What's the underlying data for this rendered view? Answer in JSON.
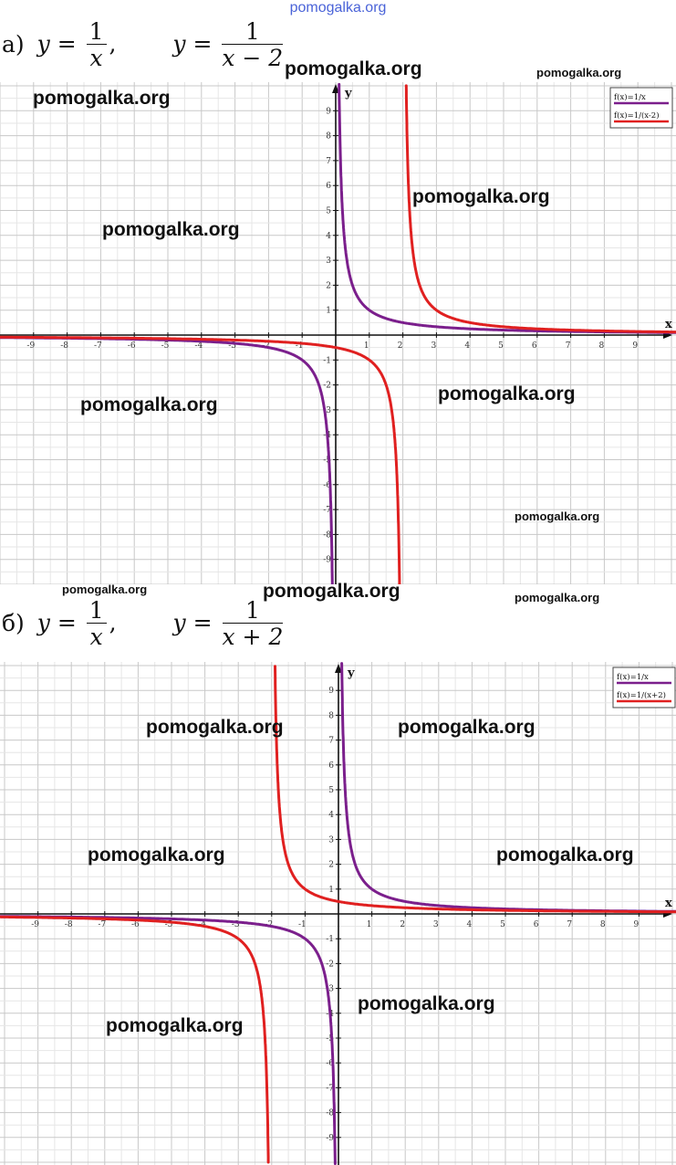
{
  "site_link": "pomogalka.org",
  "watermark": "pomogalka.org",
  "part_a": {
    "label": "а)",
    "eq1": {
      "lhs": "y =",
      "num": "1",
      "den": "x",
      "tail": ","
    },
    "eq2": {
      "lhs": "y =",
      "num": "1",
      "den": "x − 2"
    }
  },
  "part_b": {
    "label": "б)",
    "eq1": {
      "lhs": "y =",
      "num": "1",
      "den": "x",
      "tail": ","
    },
    "eq2": {
      "lhs": "y =",
      "num": "1",
      "den": "x + 2"
    }
  },
  "chart_data": [
    {
      "type": "line",
      "xlabel": "x",
      "ylabel": "y",
      "xlim": [
        -10,
        10
      ],
      "ylim": [
        -10,
        10
      ],
      "xticks": [
        -9,
        -8,
        -7,
        -6,
        -5,
        -4,
        -3,
        -2,
        -1,
        1,
        2,
        3,
        4,
        5,
        6,
        7,
        8,
        9
      ],
      "yticks": [
        -9,
        -8,
        -7,
        -6,
        -5,
        -4,
        -3,
        -2,
        -1,
        1,
        2,
        3,
        4,
        5,
        6,
        7,
        8,
        9
      ],
      "grid": true,
      "legend_position": "top-right",
      "series": [
        {
          "name": "f(x)=1/x",
          "formula": "1/x",
          "color": "#7b1f8c"
        },
        {
          "name": "f(x)=1/(x-2)",
          "formula": "1/(x-2)",
          "color": "#e02020"
        }
      ]
    },
    {
      "type": "line",
      "xlabel": "x",
      "ylabel": "y",
      "xlim": [
        -10,
        10
      ],
      "ylim": [
        -10,
        10
      ],
      "xticks": [
        -9,
        -8,
        -7,
        -6,
        -5,
        -4,
        -3,
        -2,
        -1,
        1,
        2,
        3,
        4,
        5,
        6,
        7,
        8,
        9
      ],
      "yticks": [
        -9,
        -8,
        -7,
        -6,
        -5,
        -4,
        -3,
        -2,
        -1,
        1,
        2,
        3,
        4,
        5,
        6,
        7,
        8,
        9
      ],
      "grid": true,
      "legend_position": "top-right",
      "series": [
        {
          "name": "f(x)=1/x",
          "formula": "1/x",
          "color": "#7b1f8c"
        },
        {
          "name": "f(x)=1/(x+2)",
          "formula": "1/(x+2)",
          "color": "#e02020"
        }
      ]
    }
  ]
}
